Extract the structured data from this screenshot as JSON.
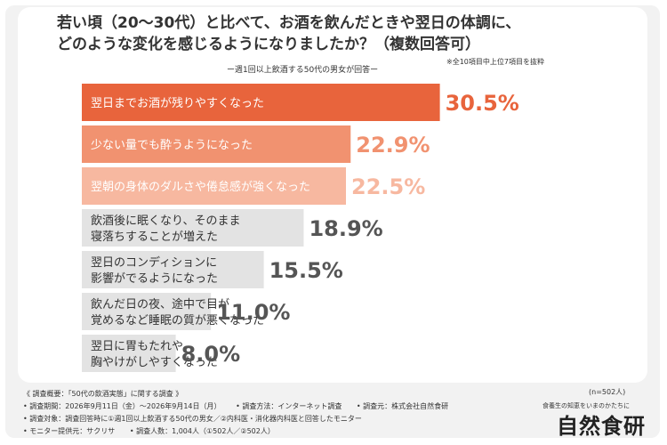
{
  "header": {
    "title_line1": "若い頃（20〜30代）と比べて、お酒を飲んだときや翌日の体調に、",
    "title_line2": "どのような変化を感じるようになりましたか？（複数回答可）",
    "subtitle": "ー週1回以上飲酒する50代の男女が回答ー",
    "note": "※全10項目中上位7項目を抜粋"
  },
  "chart_data": {
    "type": "bar",
    "orientation": "horizontal",
    "unit": "%",
    "categories": [
      [
        "翌日までお酒が残りやすくなった"
      ],
      [
        "少ない量でも酔うようになった"
      ],
      [
        "翌朝の身体のダルさや倦怠感が強くなった"
      ],
      [
        "飲酒後に眠くなり、そのまま",
        "寝落ちすることが増えた"
      ],
      [
        "翌日のコンディションに",
        "影響がでるようになった"
      ],
      [
        "飲んだ日の夜、途中で目が",
        "覚めるなど睡眠の質が悪くなった"
      ],
      [
        "翌日に胃もたれや",
        "胸やけがしやすくなった"
      ]
    ],
    "values": [
      30.5,
      22.9,
      22.5,
      18.9,
      15.5,
      11.0,
      8.0
    ],
    "value_labels": [
      "30.5%",
      "22.9%",
      "22.5%",
      "18.9%",
      "15.5%",
      "11.0%",
      "8.0%"
    ],
    "colors": [
      "#e8643c",
      "#f19270",
      "#f7b8a0",
      "#e3e3e3",
      "#e3e3e3",
      "#e3e3e3",
      "#e3e3e3"
    ],
    "label_colors": [
      "#ffffff",
      "#ffffff",
      "#ffffff",
      "#333333",
      "#333333",
      "#333333",
      "#333333"
    ],
    "value_colors": [
      "#e8643c",
      "#f19270",
      "#f7b8a0",
      "#555555",
      "#555555",
      "#555555",
      "#555555"
    ]
  },
  "footer": {
    "overview": "《 調査概要：「50代の飲酒実態」に関する調査 》",
    "period": "• 調査期間：2026年9月11日（金）〜2026年9月14日（月）",
    "method": "• 調査方法：インターネット調査",
    "source": "• 調査元：株式会社自然食研",
    "target": "• 調査対象：調査回答時に①週1回以上飲酒する50代の男女／②内科医・消化器内科医と回答したモニター",
    "provider": "• モニター提供元：サクリサ",
    "count": "• 調査人数：1,004人（①502人／②502人）"
  },
  "n_label": "(n=502人)",
  "brand": {
    "tagline": "食養生の知恵をいまのかたちに",
    "logo": "自然食研"
  }
}
